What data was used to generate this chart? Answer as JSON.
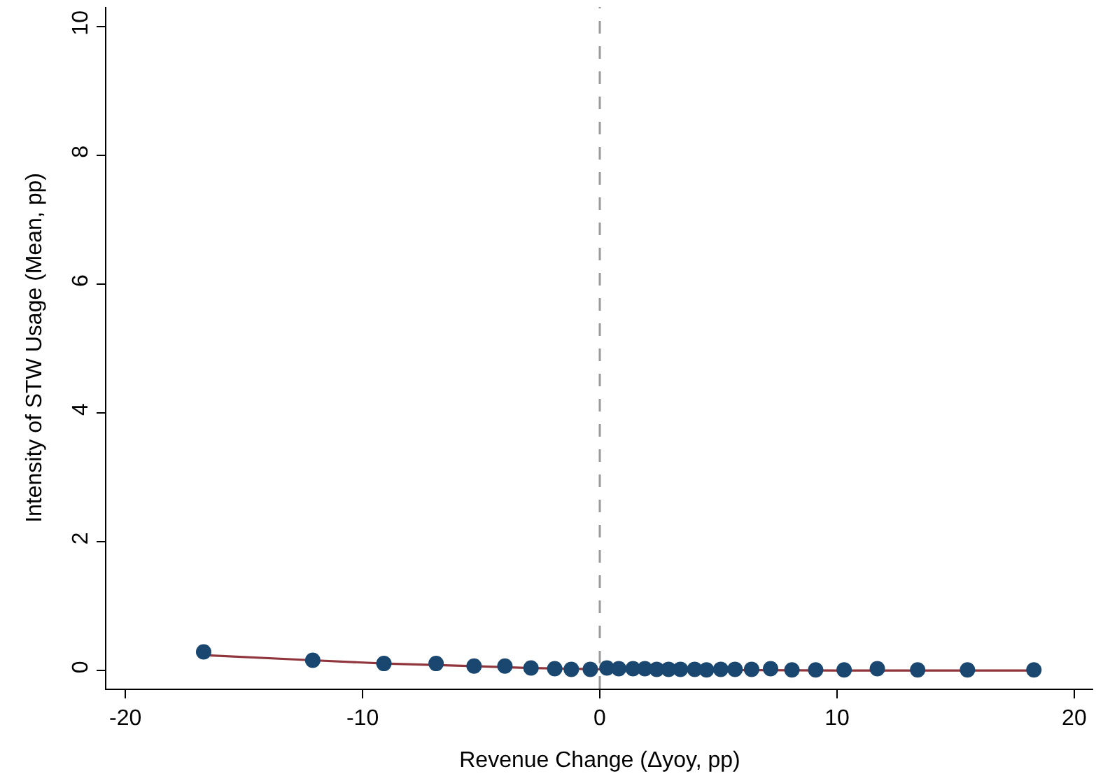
{
  "chart_data": {
    "type": "scatter",
    "xlabel": "Revenue Change (Δyoy, pp)",
    "ylabel": "Intensity of STW Usage (Mean, pp)",
    "xlim": [
      -20.8,
      20.8
    ],
    "ylim": [
      -0.28,
      10.3
    ],
    "xticks": [
      -20,
      -10,
      0,
      10,
      20
    ],
    "yticks": [
      0,
      2,
      4,
      6,
      8,
      10
    ],
    "marker": "circle",
    "ref_lines": [
      {
        "axis": "x",
        "value": 0,
        "color": "#999999",
        "line_style": "dashed"
      }
    ],
    "series": [
      {
        "type": "line",
        "color": "#90353b",
        "marker": "none",
        "line_style": "solid",
        "x": [
          -16.7,
          -12.1,
          -9.1,
          -5.3,
          -2.9,
          0,
          5,
          10,
          18.3
        ],
        "values": [
          0.24,
          0.16,
          0.11,
          0.07,
          0.04,
          0.02,
          0.01,
          0.0,
          0.0
        ]
      },
      {
        "color": "#1a476f",
        "x": [
          -16.7,
          -12.1,
          -9.1,
          -6.9,
          -5.3,
          -4.0,
          -2.9,
          -1.9,
          -1.2,
          -0.4,
          0.3,
          0.8,
          1.4,
          1.9,
          2.4,
          2.9,
          3.4,
          4.0,
          4.5,
          5.1,
          5.7,
          6.4,
          7.2,
          8.1,
          9.1,
          10.3,
          11.7,
          13.4,
          15.5,
          18.3
        ],
        "values": [
          0.29,
          0.16,
          0.11,
          0.11,
          0.07,
          0.07,
          0.04,
          0.03,
          0.02,
          0.02,
          0.04,
          0.03,
          0.03,
          0.03,
          0.02,
          0.02,
          0.02,
          0.02,
          0.01,
          0.02,
          0.02,
          0.02,
          0.03,
          0.01,
          0.01,
          0.01,
          0.03,
          0.01,
          0.01,
          0.01
        ]
      }
    ]
  }
}
